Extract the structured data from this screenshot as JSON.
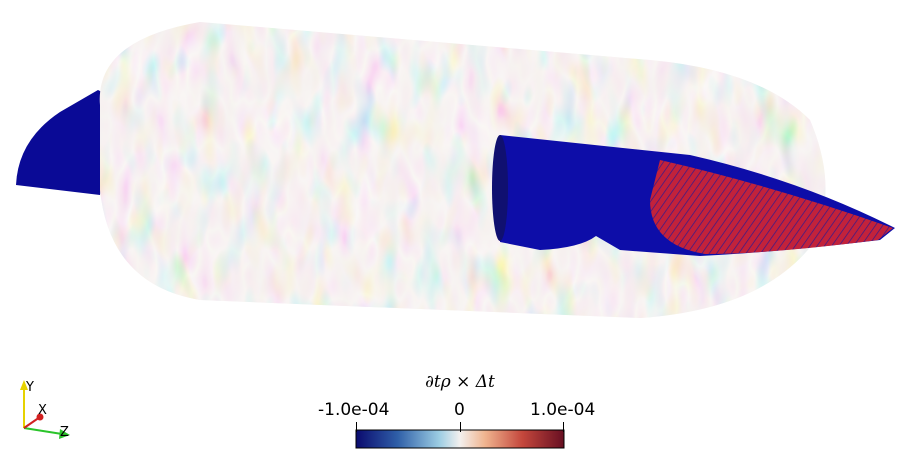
{
  "colorbar": {
    "title": "∂tρ × Δt",
    "min_label": "-1.0e-04",
    "mid_label": "0",
    "max_label": "1.0e-04",
    "colors": [
      "#0a0a6e",
      "#2f5fa8",
      "#9ccde3",
      "#f3f0ee",
      "#f0b48f",
      "#c4473c",
      "#670f22"
    ]
  },
  "orientation_axes": {
    "y_label": "Y",
    "x_label": "X",
    "z_label": "Z"
  }
}
